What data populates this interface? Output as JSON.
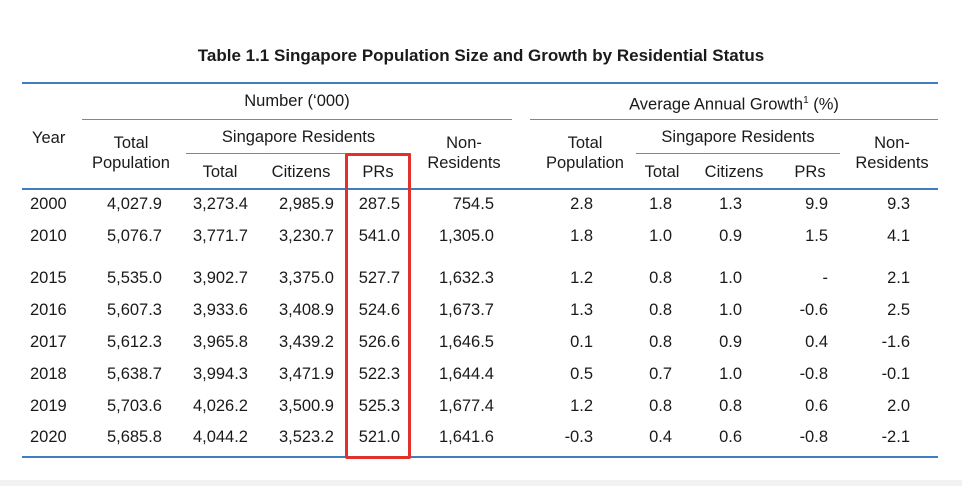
{
  "title": "Table 1.1  Singapore Population Size and Growth by Residential Status",
  "header": {
    "year": "Year",
    "number_group": "Number (‘000)",
    "growth_group_text": "Average Annual Growth",
    "growth_footnote": "1",
    "growth_unit": " (%)",
    "total_population_line1": "Total",
    "total_population_line2": "Population",
    "sg_residents": "Singapore Residents",
    "total": "Total",
    "citizens": "Citizens",
    "prs": "PRs",
    "non_residents_line1": "Non-",
    "non_residents_line2": "Residents"
  },
  "rows": [
    {
      "year": "2000",
      "tp": "4,027.9",
      "sr": "3,273.4",
      "cit": "2,985.9",
      "pr": "287.5",
      "nr": "754.5",
      "g_tp": "2.8",
      "g_sr": "1.8",
      "g_cit": "1.3",
      "g_pr": "9.9",
      "g_nr": "9.3"
    },
    {
      "year": "2010",
      "tp": "5,076.7",
      "sr": "3,771.7",
      "cit": "3,230.7",
      "pr": "541.0",
      "nr": "1,305.0",
      "g_tp": "1.8",
      "g_sr": "1.0",
      "g_cit": "0.9",
      "g_pr": "1.5",
      "g_nr": "4.1"
    },
    {
      "year": "2015",
      "tp": "5,535.0",
      "sr": "3,902.7",
      "cit": "3,375.0",
      "pr": "527.7",
      "nr": "1,632.3",
      "g_tp": "1.2",
      "g_sr": "0.8",
      "g_cit": "1.0",
      "g_pr": "-",
      "g_nr": "2.1"
    },
    {
      "year": "2016",
      "tp": "5,607.3",
      "sr": "3,933.6",
      "cit": "3,408.9",
      "pr": "524.6",
      "nr": "1,673.7",
      "g_tp": "1.3",
      "g_sr": "0.8",
      "g_cit": "1.0",
      "g_pr": "-0.6",
      "g_nr": "2.5"
    },
    {
      "year": "2017",
      "tp": "5,612.3",
      "sr": "3,965.8",
      "cit": "3,439.2",
      "pr": "526.6",
      "nr": "1,646.5",
      "g_tp": "0.1",
      "g_sr": "0.8",
      "g_cit": "0.9",
      "g_pr": "0.4",
      "g_nr": "-1.6"
    },
    {
      "year": "2018",
      "tp": "5,638.7",
      "sr": "3,994.3",
      "cit": "3,471.9",
      "pr": "522.3",
      "nr": "1,644.4",
      "g_tp": "0.5",
      "g_sr": "0.7",
      "g_cit": "1.0",
      "g_pr": "-0.8",
      "g_nr": "-0.1"
    },
    {
      "year": "2019",
      "tp": "5,703.6",
      "sr": "4,026.2",
      "cit": "3,500.9",
      "pr": "525.3",
      "nr": "1,677.4",
      "g_tp": "1.2",
      "g_sr": "0.8",
      "g_cit": "0.8",
      "g_pr": "0.6",
      "g_nr": "2.0"
    },
    {
      "year": "2020",
      "tp": "5,685.8",
      "sr": "4,044.2",
      "cit": "3,523.2",
      "pr": "521.0",
      "nr": "1,641.6",
      "g_tp": "-0.3",
      "g_sr": "0.4",
      "g_cit": "0.6",
      "g_pr": "-0.8",
      "g_nr": "-2.1"
    }
  ],
  "colors": {
    "rule": "#3f7fc1",
    "highlight": "#e0312b"
  }
}
